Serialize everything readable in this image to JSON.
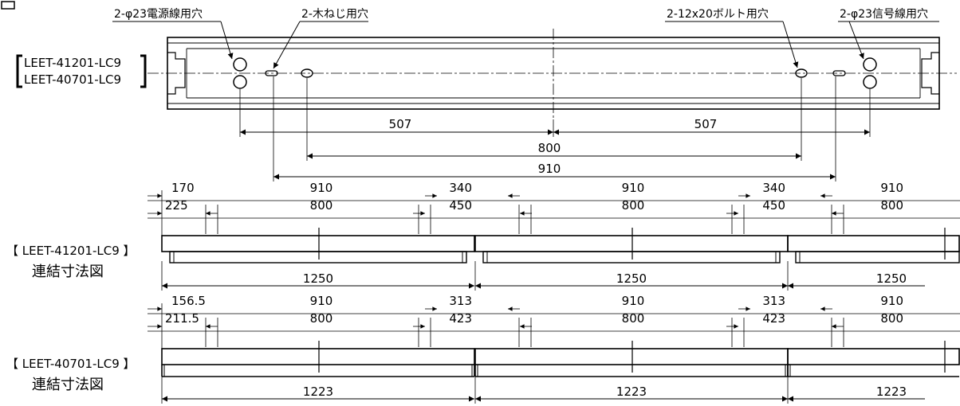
{
  "figure_label": "図",
  "top_view": {
    "model_names": [
      "LEET-41201-LC9",
      "LEET-40701-LC9"
    ],
    "bracket_open": "【",
    "bracket_close": "】",
    "callouts": {
      "power_hole": "2-φ23電源線用穴",
      "screw_hole": "2-木ねじ用穴",
      "bolt_hole": "2-12x20ボルト用穴",
      "signal_hole": "2-φ23信号線用穴"
    },
    "dims": {
      "half_left": "507",
      "half_right": "507",
      "bolt_pitch": "800",
      "screw_pitch": "910"
    }
  },
  "chains": [
    {
      "title_model": "【 LEET-41201-LC9 】",
      "title_text": "連結寸法図",
      "row1": [
        "170",
        "910",
        "340",
        "910",
        "340",
        "910"
      ],
      "row2": [
        "225",
        "800",
        "450",
        "800",
        "450",
        "800"
      ],
      "length": [
        "1250",
        "1250",
        "1250"
      ]
    },
    {
      "title_model": "【 LEET-40701-LC9 】",
      "title_text": "連結寸法図",
      "row1": [
        "156.5",
        "910",
        "313",
        "910",
        "313",
        "910"
      ],
      "row2": [
        "211.5",
        "800",
        "423",
        "800",
        "423",
        "800"
      ],
      "length": [
        "1223",
        "1223",
        "1223"
      ]
    }
  ]
}
